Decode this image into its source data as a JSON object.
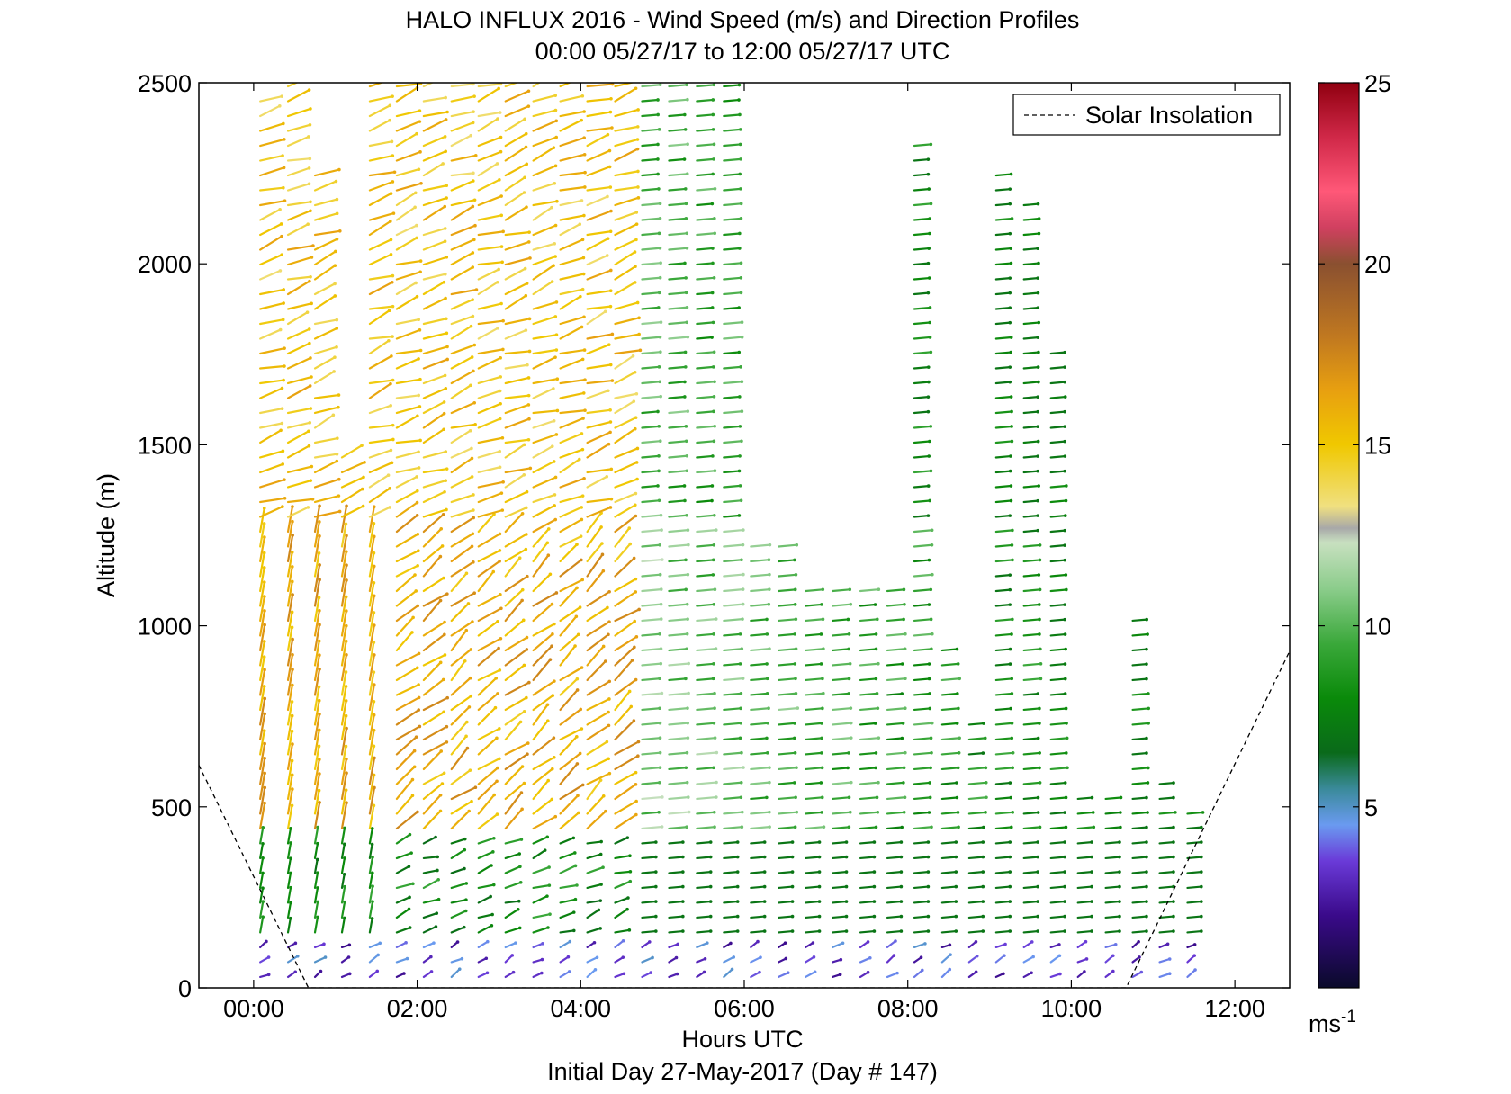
{
  "chart_data": {
    "type": "vector_field",
    "title": "HALO INFLUX 2016 - Wind Speed (m/s) and Direction Profiles",
    "subtitle": "00:00 05/27/17 to 12:00 05/27/17  UTC",
    "xlabel": "Hours UTC",
    "xlabel2": "Initial Day 27-May-2017 (Day # 147)",
    "ylabel": "Altitude (m)",
    "x_unit": "hours",
    "xlim": [
      -0.67,
      12.67
    ],
    "ylim": [
      0,
      2500
    ],
    "x_ticks": [
      0,
      2,
      4,
      6,
      8,
      10,
      12
    ],
    "x_tick_labels": [
      "00:00",
      "02:00",
      "04:00",
      "06:00",
      "08:00",
      "10:00",
      "12:00"
    ],
    "y_ticks": [
      0,
      500,
      1000,
      1500,
      2000,
      2500
    ],
    "y_tick_labels": [
      "0",
      "500",
      "1000",
      "1500",
      "2000",
      "2500"
    ],
    "legend": {
      "label": "Solar Insolation",
      "style": "dashed",
      "placement": "top-right"
    },
    "colorbar": {
      "min": 0,
      "max": 25,
      "ticks": [
        5,
        10,
        15,
        20,
        25
      ],
      "tick_labels": [
        "5",
        "10",
        "15",
        "20",
        "25"
      ],
      "unit_base": "ms",
      "unit_exp": "-1",
      "colormap": [
        [
          0,
          "#0a0a2a"
        ],
        [
          2,
          "#3a0a8a"
        ],
        [
          3.5,
          "#6a3ad8"
        ],
        [
          4.5,
          "#6a9af0"
        ],
        [
          5.5,
          "#3a8a9a"
        ],
        [
          6.5,
          "#0a6a1a"
        ],
        [
          8,
          "#0a8a0a"
        ],
        [
          9.5,
          "#3aa83a"
        ],
        [
          11,
          "#8acc8a"
        ],
        [
          12.3,
          "#c8e0c0"
        ],
        [
          12.7,
          "#a8a8a8"
        ],
        [
          13.3,
          "#f0e080"
        ],
        [
          15,
          "#f0c800"
        ],
        [
          16.5,
          "#e8a010"
        ],
        [
          18,
          "#c07820"
        ],
        [
          20,
          "#8a5030"
        ],
        [
          21,
          "#d04060"
        ],
        [
          22,
          "#ff5878"
        ],
        [
          23.5,
          "#d02848"
        ],
        [
          25,
          "#900010"
        ]
      ]
    },
    "solar_insolation": {
      "x": [
        -0.67,
        0.67,
        10.67,
        12.67
      ],
      "y": [
        615,
        0,
        0,
        930
      ]
    },
    "profile_times": [
      0.08,
      0.42,
      0.75,
      1.08,
      1.42,
      1.75,
      2.08,
      2.42,
      2.75,
      3.08,
      3.42,
      3.75,
      4.08,
      4.42,
      4.75,
      5.08,
      5.42,
      5.75,
      6.08,
      6.42,
      6.75,
      7.08,
      7.42,
      7.75,
      8.08,
      8.42,
      8.75,
      9.08,
      9.42,
      9.75,
      10.08,
      10.42,
      10.75,
      11.08,
      11.42
    ],
    "profile_top_altitude": [
      2480,
      2490,
      2280,
      1490,
      2490,
      2490,
      2490,
      2490,
      2490,
      2490,
      2490,
      2490,
      2490,
      2490,
      2490,
      2490,
      2490,
      2490,
      1250,
      1250,
      1130,
      1130,
      1130,
      1130,
      2330,
      950,
      740,
      2280,
      2180,
      1760,
      540,
      540,
      1040,
      580,
      520
    ],
    "wind_regimes": [
      {
        "altitude": [
          0,
          120
        ],
        "speed": 3.5,
        "direction_deg": 240
      },
      {
        "altitude": [
          120,
          400
        ],
        "speed": 8,
        "direction_deg": 250
      },
      {
        "altitude": [
          400,
          1300
        ],
        "speed": 16,
        "direction_deg": 230
      },
      {
        "altitude": [
          1300,
          2500
        ],
        "speed": 15,
        "direction_deg": 250
      }
    ]
  }
}
